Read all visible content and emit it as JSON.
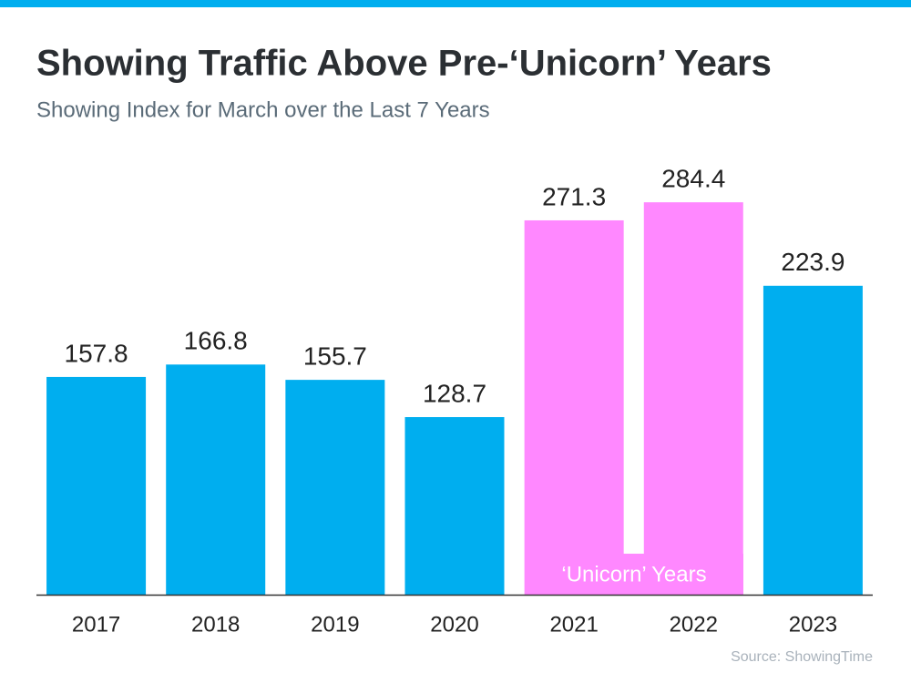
{
  "chart_data": {
    "type": "bar",
    "title": "Showing Traffic Above Pre-‘Unicorn’ Years",
    "subtitle": "Showing Index for March over the Last 7 Years",
    "categories": [
      "2017",
      "2018",
      "2019",
      "2020",
      "2021",
      "2022",
      "2023"
    ],
    "values": [
      157.8,
      166.8,
      155.7,
      128.7,
      271.3,
      284.4,
      223.9
    ],
    "colors": [
      "#00aeef",
      "#00aeef",
      "#00aeef",
      "#00aeef",
      "#ff88ff",
      "#ff88ff",
      "#00aeef"
    ],
    "annotation": "‘Unicorn’ Years",
    "source": "Source: ShowingTime",
    "ylim": [
      0,
      300
    ]
  }
}
